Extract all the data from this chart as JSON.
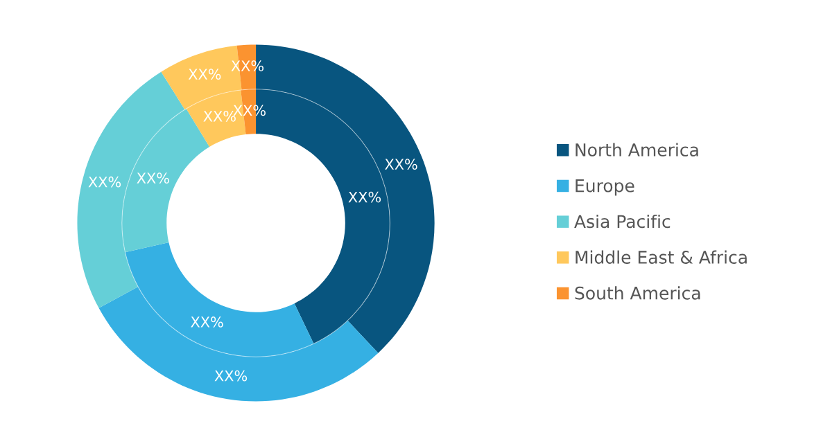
{
  "chart_data": {
    "type": "donut",
    "categories": [
      "North America",
      "Europe",
      "Asia Pacific",
      "Middle East & Africa",
      "South America"
    ],
    "colors": [
      "#08557f",
      "#35b0e3",
      "#65cfd7",
      "#ffc85c",
      "#fb9330"
    ],
    "series": [
      {
        "values": [
          38.0,
          29.1,
          24.0,
          7.2,
          1.7
        ],
        "value_labels": [
          "XX%",
          "XX%",
          "XX%",
          "XX%",
          "XX%"
        ]
      },
      {
        "values": [
          42.9,
          28.6,
          19.8,
          6.9,
          1.8
        ],
        "value_labels": [
          "XX%",
          "XX%",
          "XX%",
          "XX%",
          "XX%"
        ]
      }
    ],
    "legend": "right"
  }
}
